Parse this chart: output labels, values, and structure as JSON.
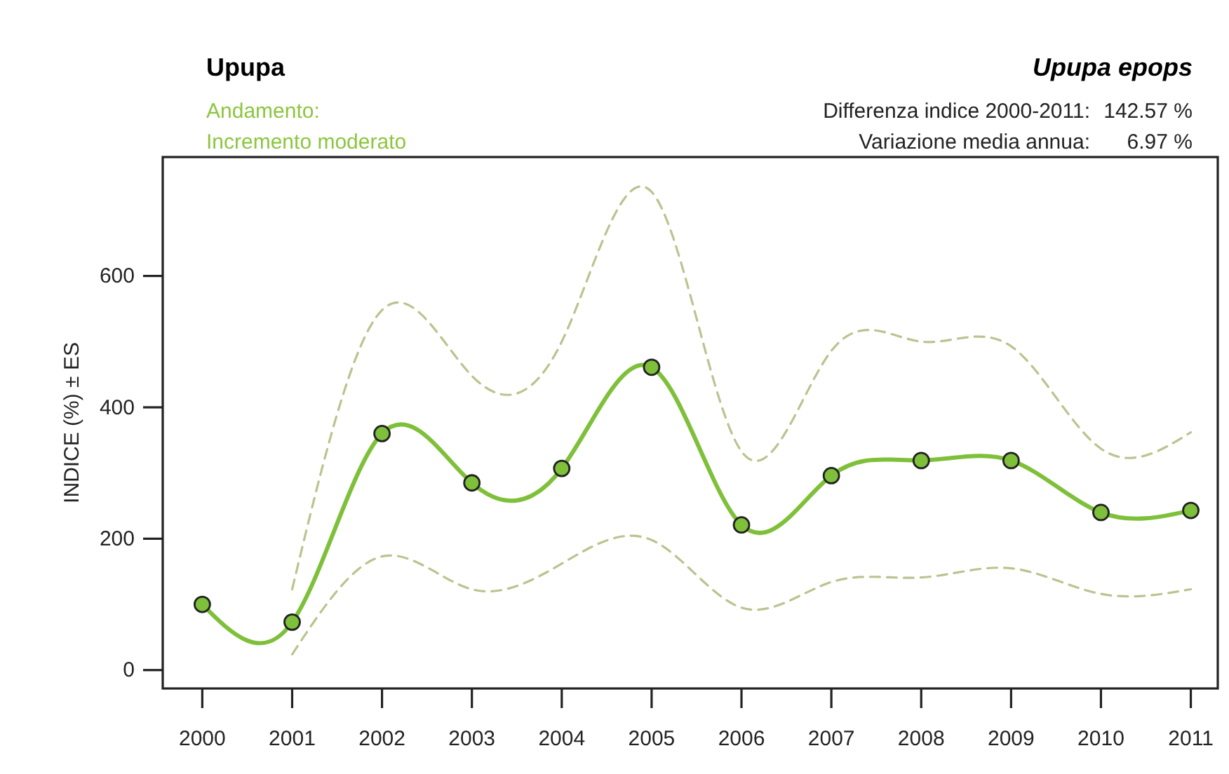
{
  "chart_data": {
    "type": "line",
    "title": "Upupa",
    "subtitle": "Upupa epops",
    "ylabel": "INDICE (%) ± ES",
    "annotations": [
      "Andamento:",
      "Incremento moderato",
      "Differenza indice 2000-2011:",
      "142.57 %",
      "Variazione media annua:",
      "6.97 %"
    ],
    "x": [
      2000,
      2001,
      2002,
      2003,
      2004,
      2005,
      2006,
      2007,
      2008,
      2009,
      2010,
      2011
    ],
    "series": [
      {
        "color": "#b9c48f",
        "line_style": "dashed",
        "marker": "none",
        "x": [
          2001,
          2002,
          2003,
          2004,
          2005,
          2006,
          2007,
          2008,
          2009,
          2010,
          2011
        ],
        "values": [
          123,
          548,
          448,
          500,
          728,
          333,
          486,
          500,
          493,
          337,
          362
        ]
      },
      {
        "color": "#b9c48f",
        "line_style": "dashed",
        "marker": "none",
        "x": [
          2001,
          2002,
          2003,
          2004,
          2005,
          2006,
          2007,
          2008,
          2009,
          2010,
          2011
        ],
        "values": [
          24,
          173,
          123,
          162,
          198,
          95,
          134,
          141,
          155,
          116,
          123
        ]
      },
      {
        "color": "#7fc03a",
        "line_style": "solid",
        "marker": "circle",
        "values": [
          100,
          73,
          360,
          285,
          307,
          461,
          221,
          296,
          319,
          319,
          240,
          243
        ]
      }
    ],
    "xlim": [
      1999.56,
      2011.3
    ],
    "xticks": [
      2000,
      2001,
      2002,
      2003,
      2004,
      2005,
      2006,
      2007,
      2008,
      2009,
      2010,
      2011
    ],
    "ylim": [
      -28,
      781
    ],
    "yticks": [
      0,
      200,
      400,
      600
    ]
  }
}
